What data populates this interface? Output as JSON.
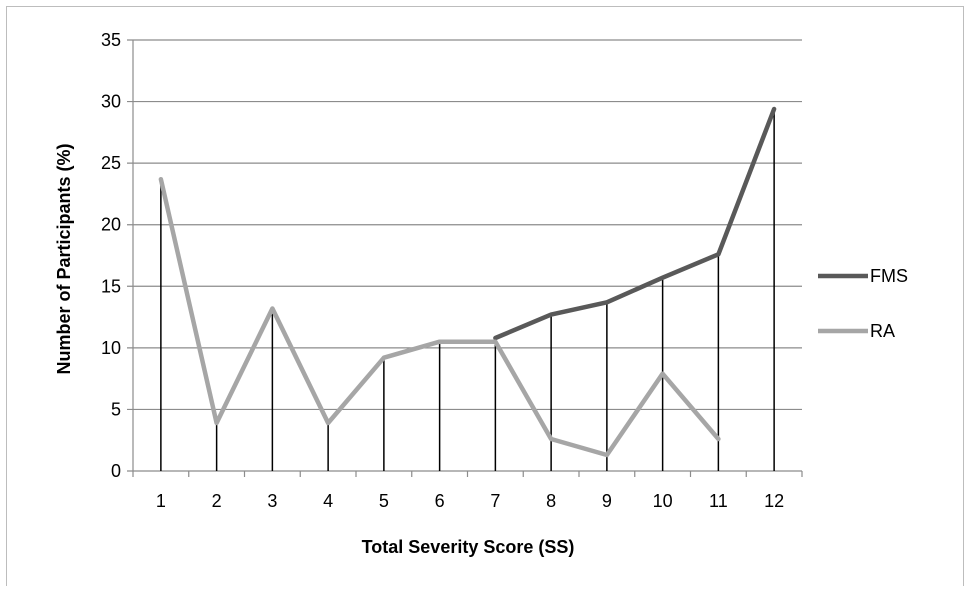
{
  "chart_data": {
    "type": "line",
    "title": "",
    "xlabel": "Total Severity Score (SS)",
    "ylabel": "Number of Participants (%)",
    "categories": [
      "1",
      "2",
      "3",
      "4",
      "5",
      "6",
      "7",
      "8",
      "9",
      "10",
      "11",
      "12"
    ],
    "ylim": [
      0,
      35
    ],
    "yticks": [
      "0",
      "5",
      "10",
      "15",
      "20",
      "25",
      "30",
      "35"
    ],
    "grid": true,
    "legend_position": "right",
    "drop_lines": true,
    "series": [
      {
        "name": "FMS",
        "color": "#595959",
        "values": [
          null,
          null,
          null,
          null,
          null,
          null,
          10.8,
          12.7,
          13.7,
          15.7,
          17.6,
          29.4
        ]
      },
      {
        "name": "RA",
        "color": "#a6a6a6",
        "values": [
          23.7,
          3.9,
          13.2,
          3.9,
          9.2,
          10.5,
          10.5,
          2.6,
          1.3,
          7.9,
          2.6,
          null
        ]
      }
    ]
  }
}
